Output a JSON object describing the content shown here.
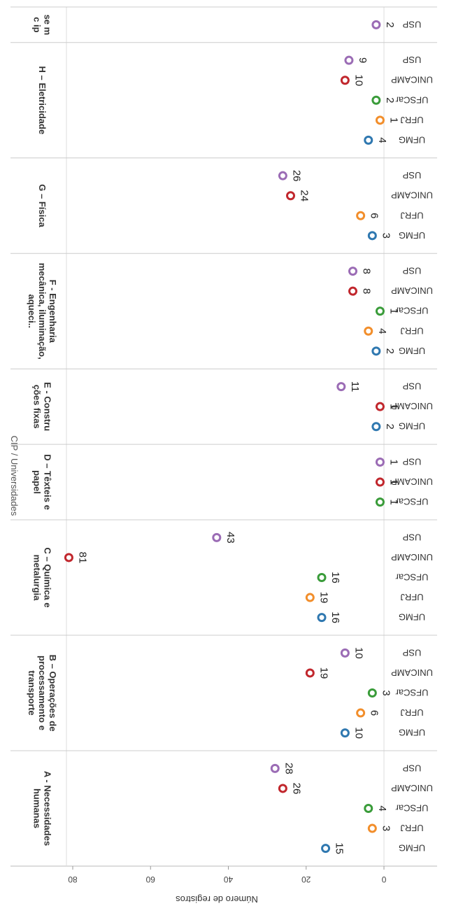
{
  "chart_data": {
    "type": "scatter",
    "title": "",
    "xlabel": "CIP / Universidades",
    "ylabel": "Número de registros",
    "ylim": [
      -2,
      95
    ],
    "yticks": [
      0,
      20,
      40,
      60,
      80
    ],
    "orientation": "rotated-180",
    "colors": {
      "UFMG": "#2f78b0",
      "UFRJ": "#f28e2b",
      "UFSCar": "#3a9c3a",
      "UNICAMP": "#c1272d",
      "USP": "#9b6cb5"
    },
    "groups": [
      {
        "label": "A - Necessidades humanas",
        "points": [
          {
            "u": "UFMG",
            "v": 15
          },
          {
            "u": "UFRJ",
            "v": 3
          },
          {
            "u": "UFSCar",
            "v": 4
          },
          {
            "u": "UNICAMP",
            "v": 26
          },
          {
            "u": "USP",
            "v": 28
          }
        ]
      },
      {
        "label": "B – Operações de processamento e transporte",
        "points": [
          {
            "u": "UFMG",
            "v": 10
          },
          {
            "u": "UFRJ",
            "v": 6
          },
          {
            "u": "UFSCar",
            "v": 3
          },
          {
            "u": "UNICAMP",
            "v": 19
          },
          {
            "u": "USP",
            "v": 10
          }
        ]
      },
      {
        "label": "C – Química e metalurgia",
        "points": [
          {
            "u": "UFMG",
            "v": 16
          },
          {
            "u": "UFRJ",
            "v": 19
          },
          {
            "u": "UFSCar",
            "v": 16
          },
          {
            "u": "UNICAMP",
            "v": 81
          },
          {
            "u": "USP",
            "v": 43
          }
        ]
      },
      {
        "label": "D – Têxteis e papel",
        "points": [
          {
            "u": "UFSCar",
            "v": 1
          },
          {
            "u": "UNICAMP",
            "v": 1
          },
          {
            "u": "USP",
            "v": 1
          }
        ]
      },
      {
        "label": "E - Constru ções fixas",
        "points": [
          {
            "u": "UFMG",
            "v": 2
          },
          {
            "u": "UNICAMP",
            "v": 1
          },
          {
            "u": "USP",
            "v": 11
          }
        ]
      },
      {
        "label": "F - Engenharia mecânica, iluminação, aqueci..",
        "points": [
          {
            "u": "UFMG",
            "v": 2
          },
          {
            "u": "UFRJ",
            "v": 4
          },
          {
            "u": "UFSCar",
            "v": 1
          },
          {
            "u": "UNICAMP",
            "v": 8
          },
          {
            "u": "USP",
            "v": 8
          }
        ]
      },
      {
        "label": "G – Física",
        "points": [
          {
            "u": "UFMG",
            "v": 3
          },
          {
            "u": "UFRJ",
            "v": 6
          },
          {
            "u": "UNICAMP",
            "v": 24
          },
          {
            "u": "USP",
            "v": 26
          }
        ]
      },
      {
        "label": "H – Eletricidade",
        "points": [
          {
            "u": "UFMG",
            "v": 4
          },
          {
            "u": "UFRJ",
            "v": 1
          },
          {
            "u": "UFSCar",
            "v": 2
          },
          {
            "u": "UNICAMP",
            "v": 10
          },
          {
            "u": "USP",
            "v": 9
          }
        ]
      },
      {
        "label": "se m c ip",
        "points": [
          {
            "u": "USP",
            "v": 2
          }
        ]
      }
    ]
  }
}
